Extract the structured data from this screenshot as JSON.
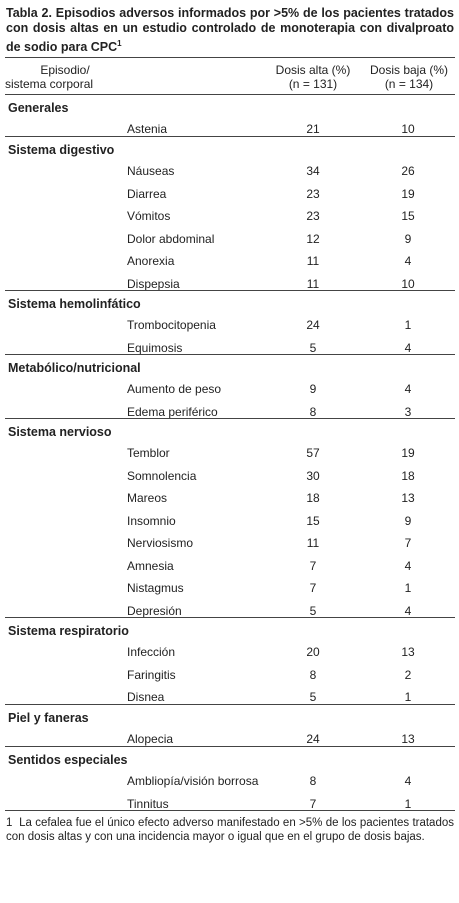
{
  "table": {
    "title": "Tabla 2. Episodios adversos informados por >5% de los pacientes tratados con dosis altas en un estudio controlado de monoterapia con divalproato de sodio para CPC",
    "title_note_mark": "1",
    "header": {
      "col1": [
        "Episodio/",
        "sistema corporal"
      ],
      "col2": [
        "Dosis alta (%)",
        "(n = 131)"
      ],
      "col3": [
        "Dosis baja (%)",
        "(n = 134)"
      ]
    },
    "groups": [
      {
        "name": "Generales",
        "rows": [
          [
            "Astenia",
            21,
            10
          ]
        ]
      },
      {
        "name": "Sistema digestivo",
        "rows": [
          [
            "Náuseas",
            34,
            26
          ],
          [
            "Diarrea",
            23,
            19
          ],
          [
            "Vómitos",
            23,
            15
          ],
          [
            "Dolor abdominal",
            12,
            9
          ],
          [
            "Anorexia",
            11,
            4
          ],
          [
            "Dispepsia",
            11,
            10
          ]
        ]
      },
      {
        "name": "Sistema hemolinfático",
        "rows": [
          [
            "Trombocitopenia",
            24,
            1
          ],
          [
            "Equimosis",
            5,
            4
          ]
        ]
      },
      {
        "name": "Metabólico/nutricional",
        "rows": [
          [
            "Aumento de peso",
            9,
            4
          ],
          [
            "Edema periférico",
            8,
            3
          ]
        ]
      },
      {
        "name": "Sistema nervioso",
        "rows": [
          [
            "Temblor",
            57,
            19
          ],
          [
            "Somnolencia",
            30,
            18
          ],
          [
            "Mareos",
            18,
            13
          ],
          [
            "Insomnio",
            15,
            9
          ],
          [
            "Nerviosismo",
            11,
            7
          ],
          [
            "Amnesia",
            7,
            4
          ],
          [
            "Nistagmus",
            7,
            1
          ],
          [
            "Depresión",
            5,
            4
          ]
        ]
      },
      {
        "name": "Sistema respiratorio",
        "rows": [
          [
            "Infección",
            20,
            13
          ],
          [
            "Faringitis",
            8,
            2
          ],
          [
            "Disnea",
            5,
            1
          ]
        ]
      },
      {
        "name": "Piel y faneras",
        "rows": [
          [
            "Alopecia",
            24,
            13
          ]
        ]
      },
      {
        "name": "Sentidos especiales",
        "rows": [
          [
            "Ambliopía/visión borrosa",
            8,
            4
          ],
          [
            "Tinnitus",
            7,
            1
          ]
        ]
      }
    ],
    "footnote": {
      "mark": "1",
      "text": "La cefalea fue el único efecto adverso manifestado en >5% de los pacientes tratados con dosis altas y con una incidencia mayor o igual que en el grupo de dosis bajas."
    }
  }
}
